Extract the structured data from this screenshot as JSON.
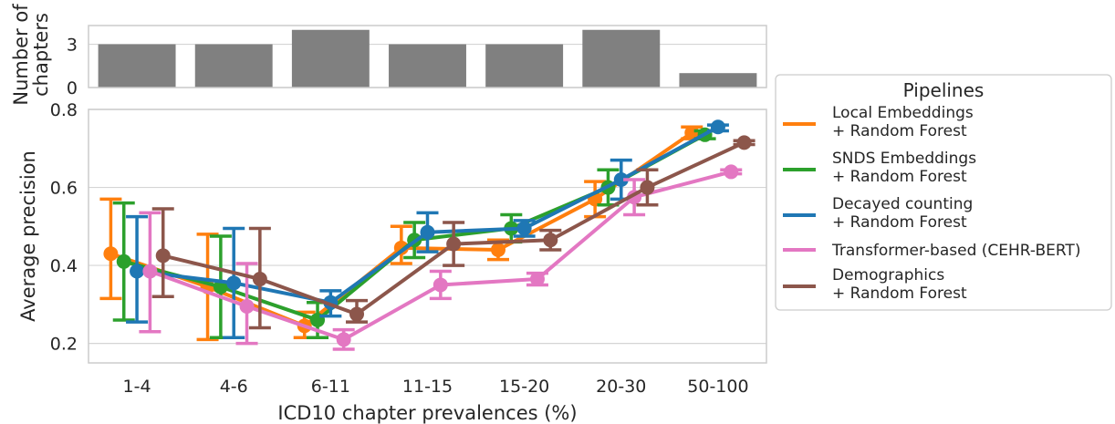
{
  "chart_data": [
    {
      "type": "bar",
      "ylabel_lines": [
        "Number of",
        "chapters"
      ],
      "categories": [
        "1-4",
        "4-6",
        "6-11",
        "11-15",
        "15-20",
        "20-30",
        "50-100"
      ],
      "values": [
        3,
        3,
        4,
        3,
        3,
        4,
        1
      ],
      "yticks": [
        0,
        3
      ],
      "ylim": [
        0,
        4.3
      ],
      "bar_color": "#808080",
      "grid": true
    },
    {
      "type": "line",
      "xlabel": "ICD10 chapter prevalences (%)",
      "ylabel": "Average precision",
      "categories": [
        "1-4",
        "4-6",
        "6-11",
        "11-15",
        "15-20",
        "20-30",
        "50-100"
      ],
      "ylim": [
        0.15,
        0.8
      ],
      "yticks": [
        0.2,
        0.4,
        0.6,
        0.8
      ],
      "grid": true,
      "legend": {
        "title": "Pipelines",
        "placement": "right"
      },
      "series": [
        {
          "name_lines": [
            "Local Embeddings",
            "+ Random Forest"
          ],
          "color": "#ff7f0e",
          "values": [
            0.43,
            0.345,
            0.245,
            0.445,
            0.44,
            0.57,
            0.74
          ],
          "err_low": [
            0.315,
            0.21,
            0.215,
            0.405,
            0.415,
            0.525,
            0.725
          ],
          "err_high": [
            0.57,
            0.48,
            0.28,
            0.5,
            0.465,
            0.615,
            0.755
          ]
        },
        {
          "name_lines": [
            "SNDS Embeddings",
            "+ Random Forest"
          ],
          "color": "#2ca02c",
          "values": [
            0.41,
            0.345,
            0.26,
            0.465,
            0.495,
            0.6,
            0.735
          ],
          "err_low": [
            0.26,
            0.215,
            0.215,
            0.42,
            0.46,
            0.555,
            0.725
          ],
          "err_high": [
            0.56,
            0.475,
            0.305,
            0.51,
            0.53,
            0.645,
            0.745
          ]
        },
        {
          "name_lines": [
            "Decayed counting",
            "+ Random Forest"
          ],
          "color": "#1f77b4",
          "values": [
            0.385,
            0.355,
            0.305,
            0.485,
            0.495,
            0.62,
            0.755
          ],
          "err_low": [
            0.255,
            0.215,
            0.27,
            0.435,
            0.475,
            0.57,
            0.745
          ],
          "err_high": [
            0.525,
            0.495,
            0.335,
            0.535,
            0.515,
            0.67,
            0.76
          ]
        },
        {
          "name_lines": [
            "Transformer-based (CEHR-BERT)"
          ],
          "color": "#e377c2",
          "values": [
            0.385,
            0.295,
            0.21,
            0.35,
            0.365,
            0.575,
            0.64
          ],
          "err_low": [
            0.23,
            0.2,
            0.185,
            0.315,
            0.35,
            0.53,
            0.635
          ],
          "err_high": [
            0.535,
            0.405,
            0.235,
            0.385,
            0.38,
            0.62,
            0.645
          ]
        },
        {
          "name_lines": [
            "Demographics",
            "+ Random Forest"
          ],
          "color": "#8c564b",
          "values": [
            0.425,
            0.365,
            0.275,
            0.455,
            0.465,
            0.6,
            0.715
          ],
          "err_low": [
            0.32,
            0.24,
            0.255,
            0.4,
            0.44,
            0.555,
            0.71
          ],
          "err_high": [
            0.545,
            0.495,
            0.31,
            0.51,
            0.49,
            0.645,
            0.72
          ]
        }
      ]
    }
  ]
}
